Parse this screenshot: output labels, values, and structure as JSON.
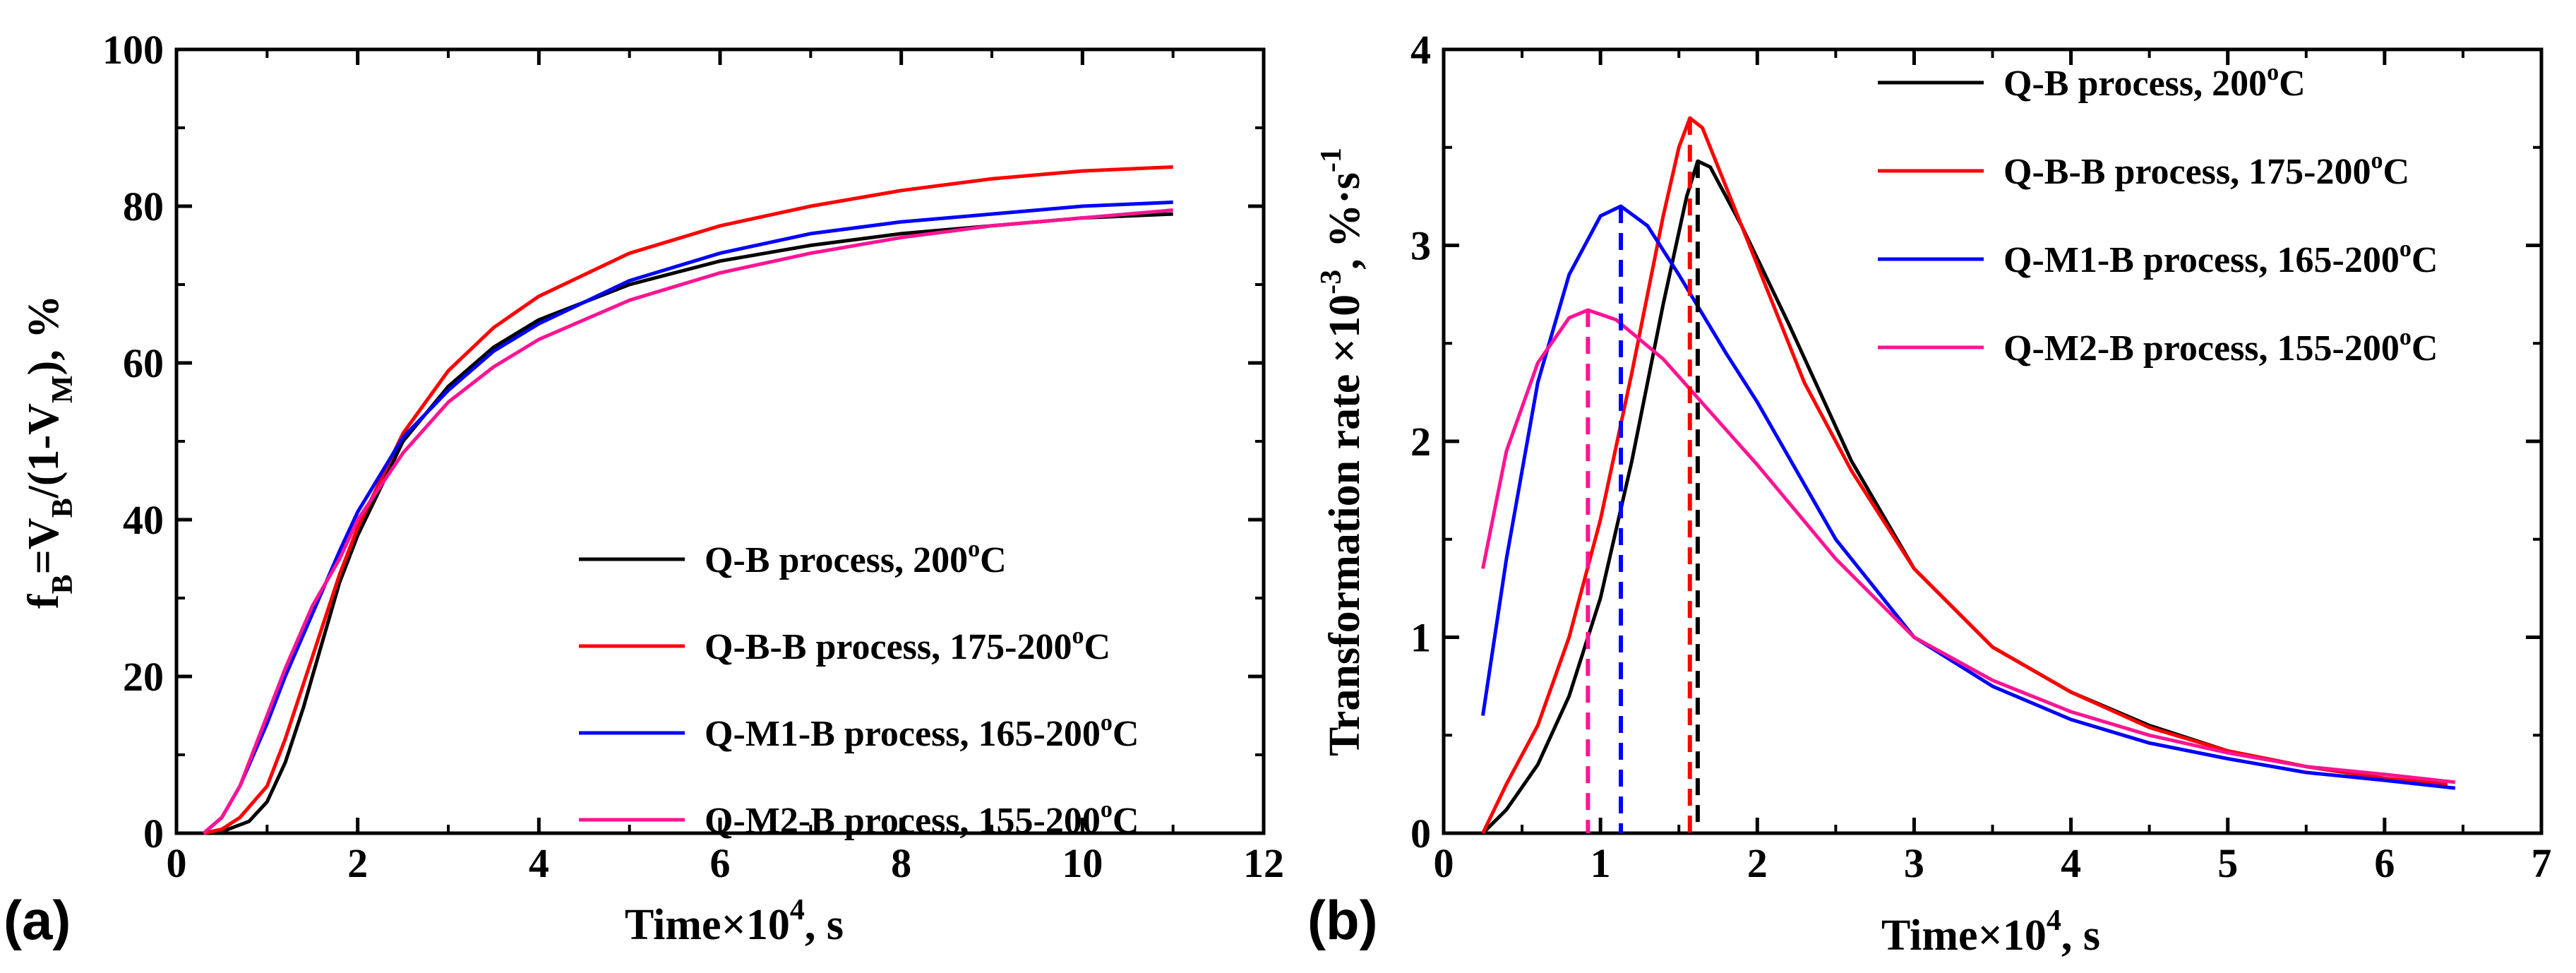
{
  "chart_data": [
    {
      "panel_label": "(a)",
      "type": "line",
      "xlabel": "Time×10",
      "xlabel_sup": "4",
      "xlabel_suffix": ", s",
      "ylabel": "f",
      "ylabel_parts": [
        "f",
        "B",
        "=V",
        "B",
        "/(1-V",
        "M",
        "), %"
      ],
      "xlim": [
        0,
        12
      ],
      "ylim": [
        0,
        100
      ],
      "xticks": [
        "0",
        "2",
        "4",
        "6",
        "8",
        "10",
        "12"
      ],
      "yticks": [
        "0",
        "20",
        "40",
        "60",
        "80",
        "100"
      ],
      "xtick_values": [
        0,
        2,
        4,
        6,
        8,
        10,
        12
      ],
      "ytick_values": [
        0,
        20,
        40,
        60,
        80,
        100
      ],
      "legend_position": "lower-right",
      "series": [
        {
          "name": "Q-B process, 200",
          "suffix": "C",
          "color": "#000000",
          "x": [
            0.3,
            0.5,
            0.8,
            1.0,
            1.2,
            1.4,
            1.6,
            1.8,
            2.0,
            2.5,
            3.0,
            3.5,
            4.0,
            5.0,
            6.0,
            7.0,
            8.0,
            9.0,
            10.0,
            11.0
          ],
          "y": [
            0,
            0.2,
            1.5,
            4,
            9,
            16,
            24,
            32,
            38,
            50,
            57,
            62,
            65.5,
            70,
            73,
            75,
            76.5,
            77.5,
            78.5,
            79
          ]
        },
        {
          "name": "Q-B-B process, 175-200",
          "suffix": "C",
          "color": "#ff0000",
          "x": [
            0.3,
            0.5,
            0.7,
            1.0,
            1.2,
            1.4,
            1.6,
            1.8,
            2.0,
            2.5,
            3.0,
            3.5,
            4.0,
            5.0,
            6.0,
            7.0,
            8.0,
            9.0,
            10.0,
            11.0
          ],
          "y": [
            0,
            0.5,
            2,
            6,
            12,
            19,
            26,
            33,
            39,
            51,
            59,
            64.5,
            68.5,
            74,
            77.5,
            80,
            82,
            83.5,
            84.5,
            85
          ]
        },
        {
          "name": "Q-M1-B process, 165-200",
          "suffix": "C",
          "color": "#0000ff",
          "x": [
            0.3,
            0.5,
            0.7,
            1.0,
            1.2,
            1.5,
            1.8,
            2.0,
            2.5,
            3.0,
            3.5,
            4.0,
            5.0,
            6.0,
            7.0,
            8.0,
            9.0,
            10.0,
            11.0
          ],
          "y": [
            0,
            2,
            6,
            14,
            20,
            28,
            36,
            41,
            50.5,
            56.5,
            61.5,
            65,
            70.5,
            74,
            76.5,
            78,
            79,
            80,
            80.5
          ]
        },
        {
          "name": "Q-M2-B process, 155-200",
          "suffix": "C",
          "color": "#ff1493",
          "x": [
            0.3,
            0.5,
            0.7,
            1.0,
            1.2,
            1.5,
            1.8,
            2.0,
            2.5,
            3.0,
            3.5,
            4.0,
            5.0,
            6.0,
            7.0,
            8.0,
            9.0,
            10.0,
            11.0
          ],
          "y": [
            0,
            2,
            6,
            15,
            21,
            29,
            35,
            40,
            48.5,
            55,
            59.5,
            63,
            68,
            71.5,
            74,
            76,
            77.5,
            78.5,
            79.5
          ]
        }
      ]
    },
    {
      "panel_label": "(b)",
      "type": "line",
      "xlabel": "Time×10",
      "xlabel_sup": "4",
      "xlabel_suffix": ", s",
      "ylabel": "Transformation rate ×10",
      "ylabel_parts": [
        "Transformation rate ×10",
        "-3",
        ", %·s",
        "-1"
      ],
      "xlim": [
        0,
        7
      ],
      "ylim": [
        0,
        4
      ],
      "xticks": [
        "0",
        "1",
        "2",
        "3",
        "4",
        "5",
        "6",
        "7"
      ],
      "yticks": [
        "0",
        "1",
        "2",
        "3",
        "4"
      ],
      "xtick_values": [
        0,
        1,
        2,
        3,
        4,
        5,
        6,
        7
      ],
      "ytick_values": [
        0,
        1,
        2,
        3,
        4
      ],
      "legend_position": "top-right",
      "peak_markers": [
        {
          "series": "Q-B process, 200",
          "x": 1.62,
          "y": 3.43
        },
        {
          "series": "Q-B-B process, 175-200",
          "x": 1.57,
          "y": 3.65
        },
        {
          "series": "Q-M1-B process, 165-200",
          "x": 1.13,
          "y": 3.2
        },
        {
          "series": "Q-M2-B process, 155-200",
          "x": 0.92,
          "y": 2.67
        }
      ],
      "series": [
        {
          "name": "Q-B process, 200",
          "suffix": "C",
          "color": "#000000",
          "x": [
            0.25,
            0.4,
            0.6,
            0.8,
            1.0,
            1.2,
            1.4,
            1.55,
            1.62,
            1.7,
            1.9,
            2.2,
            2.6,
            3.0,
            3.5,
            4.0,
            4.5,
            5.0,
            5.5,
            6.0,
            6.4
          ],
          "y": [
            0,
            0.12,
            0.35,
            0.7,
            1.2,
            1.9,
            2.7,
            3.25,
            3.43,
            3.4,
            3.1,
            2.6,
            1.9,
            1.35,
            0.95,
            0.72,
            0.55,
            0.42,
            0.34,
            0.28,
            0.24
          ]
        },
        {
          "name": "Q-B-B process, 175-200",
          "suffix": "C",
          "color": "#ff0000",
          "x": [
            0.25,
            0.4,
            0.6,
            0.8,
            1.0,
            1.2,
            1.4,
            1.5,
            1.57,
            1.65,
            1.8,
            2.0,
            2.3,
            2.6,
            3.0,
            3.5,
            4.0,
            4.5,
            5.0,
            5.5,
            6.0,
            6.4
          ],
          "y": [
            0,
            0.25,
            0.55,
            1.0,
            1.6,
            2.35,
            3.15,
            3.5,
            3.65,
            3.6,
            3.3,
            2.9,
            2.3,
            1.85,
            1.35,
            0.95,
            0.72,
            0.54,
            0.42,
            0.34,
            0.28,
            0.25
          ]
        },
        {
          "name": "Q-M1-B process, 165-200",
          "suffix": "C",
          "color": "#0000ff",
          "x": [
            0.25,
            0.4,
            0.6,
            0.8,
            1.0,
            1.13,
            1.3,
            1.5,
            1.8,
            2.0,
            2.5,
            3.0,
            3.5,
            4.0,
            4.5,
            5.0,
            5.5,
            6.0,
            6.45
          ],
          "y": [
            0.6,
            1.4,
            2.3,
            2.85,
            3.15,
            3.2,
            3.1,
            2.85,
            2.45,
            2.2,
            1.5,
            1.0,
            0.75,
            0.58,
            0.46,
            0.38,
            0.31,
            0.27,
            0.23
          ]
        },
        {
          "name": "Q-M2-B process, 155-200",
          "suffix": "C",
          "color": "#ff1493",
          "x": [
            0.25,
            0.4,
            0.6,
            0.8,
            0.92,
            1.1,
            1.4,
            1.7,
            2.0,
            2.5,
            3.0,
            3.5,
            4.0,
            4.5,
            5.0,
            5.5,
            6.0,
            6.45
          ],
          "y": [
            1.35,
            1.95,
            2.4,
            2.63,
            2.67,
            2.62,
            2.42,
            2.15,
            1.88,
            1.4,
            1.0,
            0.78,
            0.62,
            0.5,
            0.41,
            0.34,
            0.3,
            0.26
          ]
        }
      ]
    }
  ]
}
